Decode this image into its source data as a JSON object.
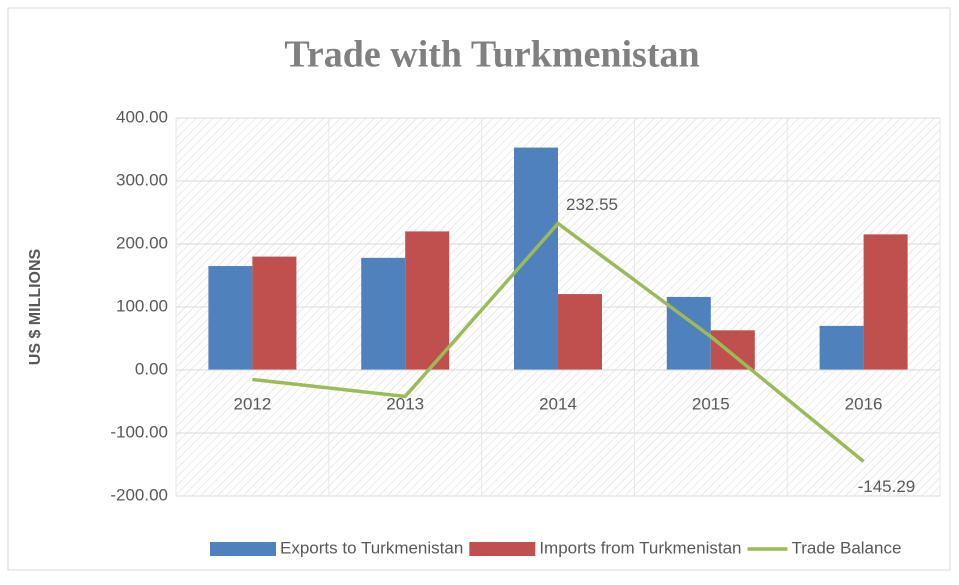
{
  "chart_data": {
    "type": "bar_line",
    "title": "Trade with Turkmenistan",
    "y_label": "US $ MILLIONS",
    "categories": [
      "2012",
      "2013",
      "2014",
      "2015",
      "2016"
    ],
    "series": [
      {
        "name": "Exports to Turkmenistan",
        "type": "bar",
        "color": "#4f81bd",
        "values": [
          165,
          178,
          353.05,
          116,
          70
        ]
      },
      {
        "name": "Imports from Turkmenistan",
        "type": "bar",
        "color": "#c0504d",
        "values": [
          180,
          220,
          120.5,
          63,
          215.29
        ]
      },
      {
        "name": "Trade Balance",
        "type": "line",
        "color": "#9bbb59",
        "values": [
          -15,
          -42,
          232.55,
          53,
          -145.29
        ],
        "value_labels": [
          null,
          null,
          "232.55",
          null,
          "-145.29"
        ]
      }
    ],
    "ylim": [
      -200,
      400
    ],
    "yticks": [
      {
        "value": -200,
        "label": "-200.00"
      },
      {
        "value": -100,
        "label": "-100.00"
      },
      {
        "value": 0,
        "label": "0.00"
      },
      {
        "value": 100,
        "label": "100.00"
      },
      {
        "value": 200,
        "label": "200.00"
      },
      {
        "value": 300,
        "label": "300.00"
      },
      {
        "value": 400,
        "label": "400.00"
      }
    ],
    "grid": true,
    "legend": "bottom"
  }
}
